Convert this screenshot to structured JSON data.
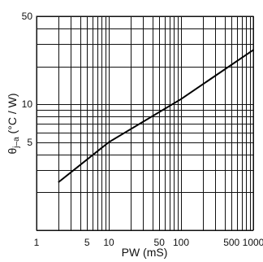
{
  "chart_data": {
    "type": "line",
    "title": "",
    "xlabel": "PW  (mS)",
    "ylabel_symbol": "θ",
    "ylabel_subscript": "j–a",
    "ylabel_unit": "(°C / W)",
    "x_scale": "log",
    "y_scale": "log",
    "xlim": [
      1,
      1000
    ],
    "ylim": [
      1,
      50
    ],
    "x_tick_labels": [
      {
        "value": 1,
        "label": "1"
      },
      {
        "value": 5,
        "label": "5"
      },
      {
        "value": 10,
        "label": "10"
      },
      {
        "value": 50,
        "label": "50"
      },
      {
        "value": 100,
        "label": "100"
      },
      {
        "value": 500,
        "label": "500"
      },
      {
        "value": 1000,
        "label": "1000"
      }
    ],
    "y_tick_labels": [
      {
        "value": 5,
        "label": "5"
      },
      {
        "value": 10,
        "label": "10"
      },
      {
        "value": 50,
        "label": "50"
      }
    ],
    "grid": true,
    "x_grid": [
      1,
      2,
      3,
      4,
      5,
      6,
      7,
      8,
      9,
      10,
      20,
      30,
      40,
      50,
      60,
      70,
      80,
      90,
      100,
      200,
      300,
      400,
      500,
      600,
      700,
      800,
      900,
      1000
    ],
    "y_grid": [
      1,
      2,
      3,
      4,
      5,
      6,
      7,
      8,
      9,
      10,
      20,
      30,
      40,
      50
    ],
    "series": [
      {
        "name": "",
        "x": [
          2,
          10,
          100,
          1000
        ],
        "y": [
          2.4,
          5.0,
          11.0,
          27.0
        ]
      }
    ]
  }
}
